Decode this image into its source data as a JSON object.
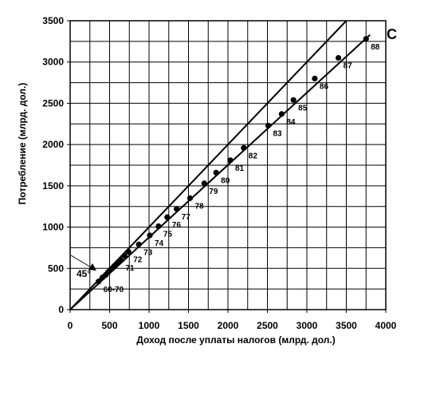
{
  "chart_data": {
    "type": "scatter",
    "title": "",
    "xlabel": "Доход после уплаты налогов (млрд. дол.)",
    "ylabel": "Потребление (млрд. дол.)",
    "xlim": [
      0,
      4000
    ],
    "ylim": [
      0,
      3500
    ],
    "xticks": [
      0,
      500,
      1000,
      1500,
      2000,
      2500,
      3000,
      3500,
      4000
    ],
    "yticks": [
      0,
      500,
      1000,
      1500,
      2000,
      2500,
      3000,
      3500
    ],
    "grid": true,
    "corner_label": "C",
    "line_45_label": "45°",
    "points": [
      {
        "x": 360,
        "y": 340,
        "label": "60-70"
      },
      {
        "x": 410,
        "y": 390,
        "label": ""
      },
      {
        "x": 450,
        "y": 420,
        "label": ""
      },
      {
        "x": 480,
        "y": 455,
        "label": ""
      },
      {
        "x": 520,
        "y": 490,
        "label": ""
      },
      {
        "x": 560,
        "y": 530,
        "label": ""
      },
      {
        "x": 600,
        "y": 565,
        "label": ""
      },
      {
        "x": 640,
        "y": 600,
        "label": "71"
      },
      {
        "x": 690,
        "y": 650,
        "label": ""
      },
      {
        "x": 740,
        "y": 700,
        "label": "72"
      },
      {
        "x": 870,
        "y": 790,
        "label": "73"
      },
      {
        "x": 1010,
        "y": 900,
        "label": "74"
      },
      {
        "x": 1120,
        "y": 1010,
        "label": "75"
      },
      {
        "x": 1230,
        "y": 1120,
        "label": "76"
      },
      {
        "x": 1350,
        "y": 1220,
        "label": "77"
      },
      {
        "x": 1520,
        "y": 1350,
        "label": "78"
      },
      {
        "x": 1700,
        "y": 1530,
        "label": "79"
      },
      {
        "x": 1850,
        "y": 1660,
        "label": "80"
      },
      {
        "x": 2030,
        "y": 1810,
        "label": "81"
      },
      {
        "x": 2200,
        "y": 1960,
        "label": "82"
      },
      {
        "x": 2510,
        "y": 2230,
        "label": "83"
      },
      {
        "x": 2680,
        "y": 2370,
        "label": "84"
      },
      {
        "x": 2830,
        "y": 2540,
        "label": "85"
      },
      {
        "x": 3100,
        "y": 2800,
        "label": "86"
      },
      {
        "x": 3400,
        "y": 3050,
        "label": "87"
      },
      {
        "x": 3750,
        "y": 3280,
        "label": "88"
      }
    ],
    "lines": [
      {
        "name": "45-degree",
        "x": [
          0,
          3500
        ],
        "y": [
          0,
          3500
        ]
      },
      {
        "name": "consumption-function",
        "x": [
          0,
          3800
        ],
        "y": [
          0,
          3330
        ]
      }
    ],
    "colors": {
      "ink": "#000000",
      "grid": "#000000",
      "background": "#ffffff"
    }
  }
}
